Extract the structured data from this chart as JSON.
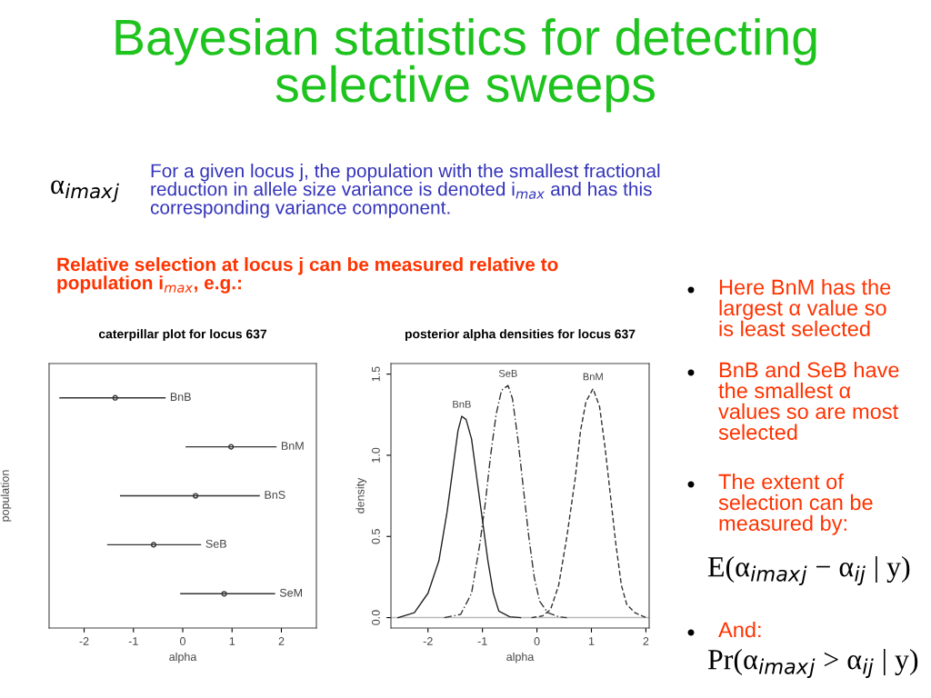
{
  "chart_data": [
    {
      "type": "other",
      "title": "Bayesian statistics for detecting\nselective sweeps",
      "annotations": [
        "α$_{imax}$$_{j}$",
        "For a given locus j, the population with the smallest fractional\nreduction in allele size variance is denoted i$_{max}$ and has this\ncorresponding variance component.",
        "Relative selection at locus j can be measured relative to\npopulation i$_{max}$, e.g.:",
        "Here BnM has the\nlargest α value so\nis least selected",
        "BnB and SeB have\nthe smallest α\nvalues so are most\nselected",
        "The extent of\nselection can be\nmeasured by:",
        "E(α$_{imax}$$_{j}$ − α$_{ij}$ | y)",
        "And:",
        "Pr(α$_{imax}$$_{j}$ > α$_{ij}$ | y)"
      ]
    },
    {
      "type": "scatter",
      "title": "caterpillar plot for locus 637",
      "xlabel": "alpha",
      "ylabel": "population",
      "orientation": "horizontal",
      "categories": [
        "BnB",
        "BnM",
        "BnS",
        "SeB",
        "SeM"
      ],
      "values": [
        -1.37,
        0.98,
        0.26,
        -0.59,
        0.84
      ],
      "errors": [
        [
          -2.49,
          -0.36
        ],
        [
          0.07,
          1.89
        ],
        [
          -1.26,
          1.55
        ],
        [
          -1.52,
          0.36
        ],
        [
          -0.04,
          1.86
        ]
      ],
      "color": "#333333",
      "marker": "circle",
      "xlim": [
        -2.71,
        2.71
      ],
      "xticks": [
        -2,
        -1,
        0,
        1,
        2
      ],
      "tick_labels": "x",
      "grid": false
    },
    {
      "type": "line",
      "title": "posterior alpha densities for locus 637",
      "xlabel": "alpha",
      "ylabel": "density",
      "series": [
        {
          "name": "BnB",
          "color": "#222222",
          "line_style": "solid",
          "x": [
            -2.55,
            -2.25,
            -2.0,
            -1.8,
            -1.65,
            -1.55,
            -1.45,
            -1.38,
            -1.3,
            -1.2,
            -1.1,
            -1.0,
            -0.9,
            -0.8,
            -0.7,
            -0.5,
            -0.3
          ],
          "values": [
            0,
            0.03,
            0.15,
            0.35,
            0.65,
            0.9,
            1.15,
            1.24,
            1.22,
            1.1,
            0.85,
            0.6,
            0.35,
            0.15,
            0.04,
            0.005,
            0
          ]
        },
        {
          "name": "SeB",
          "color": "#333333",
          "line_style": "dashdot",
          "x": [
            -1.7,
            -1.4,
            -1.2,
            -1.05,
            -0.95,
            -0.85,
            -0.75,
            -0.65,
            -0.53,
            -0.45,
            -0.35,
            -0.25,
            -0.15,
            -0.05,
            0.05,
            0.2,
            0.4,
            0.55
          ],
          "values": [
            0,
            0.02,
            0.15,
            0.45,
            0.7,
            1.0,
            1.25,
            1.4,
            1.43,
            1.35,
            1.1,
            0.8,
            0.5,
            0.25,
            0.1,
            0.03,
            0.005,
            0
          ]
        },
        {
          "name": "BnM",
          "color": "#333333",
          "line_style": "dashed",
          "x": [
            -0.1,
            0.1,
            0.25,
            0.4,
            0.55,
            0.7,
            0.8,
            0.9,
            1.03,
            1.15,
            1.25,
            1.35,
            1.45,
            1.55,
            1.65,
            1.8,
            2.0
          ],
          "values": [
            0,
            0.01,
            0.05,
            0.2,
            0.5,
            0.85,
            1.15,
            1.33,
            1.41,
            1.3,
            1.05,
            0.75,
            0.45,
            0.2,
            0.08,
            0.03,
            0
          ]
        }
      ],
      "ref_lines": [
        {
          "axis": "y",
          "value": 0,
          "color": "#bbbbbb"
        }
      ],
      "xlim": [
        -2.68,
        2.06
      ],
      "ylim": [
        -0.064,
        1.565
      ],
      "xticks": [
        -2,
        -1,
        0,
        1,
        2
      ],
      "yticks": [
        {
          "value": 0,
          "label": "0.0"
        },
        {
          "value": 0.5,
          "label": "0.5"
        },
        {
          "value": 1,
          "label": "1.0"
        },
        {
          "value": 1.5,
          "label": "1.5"
        }
      ],
      "marker": "none",
      "grid": false
    }
  ]
}
